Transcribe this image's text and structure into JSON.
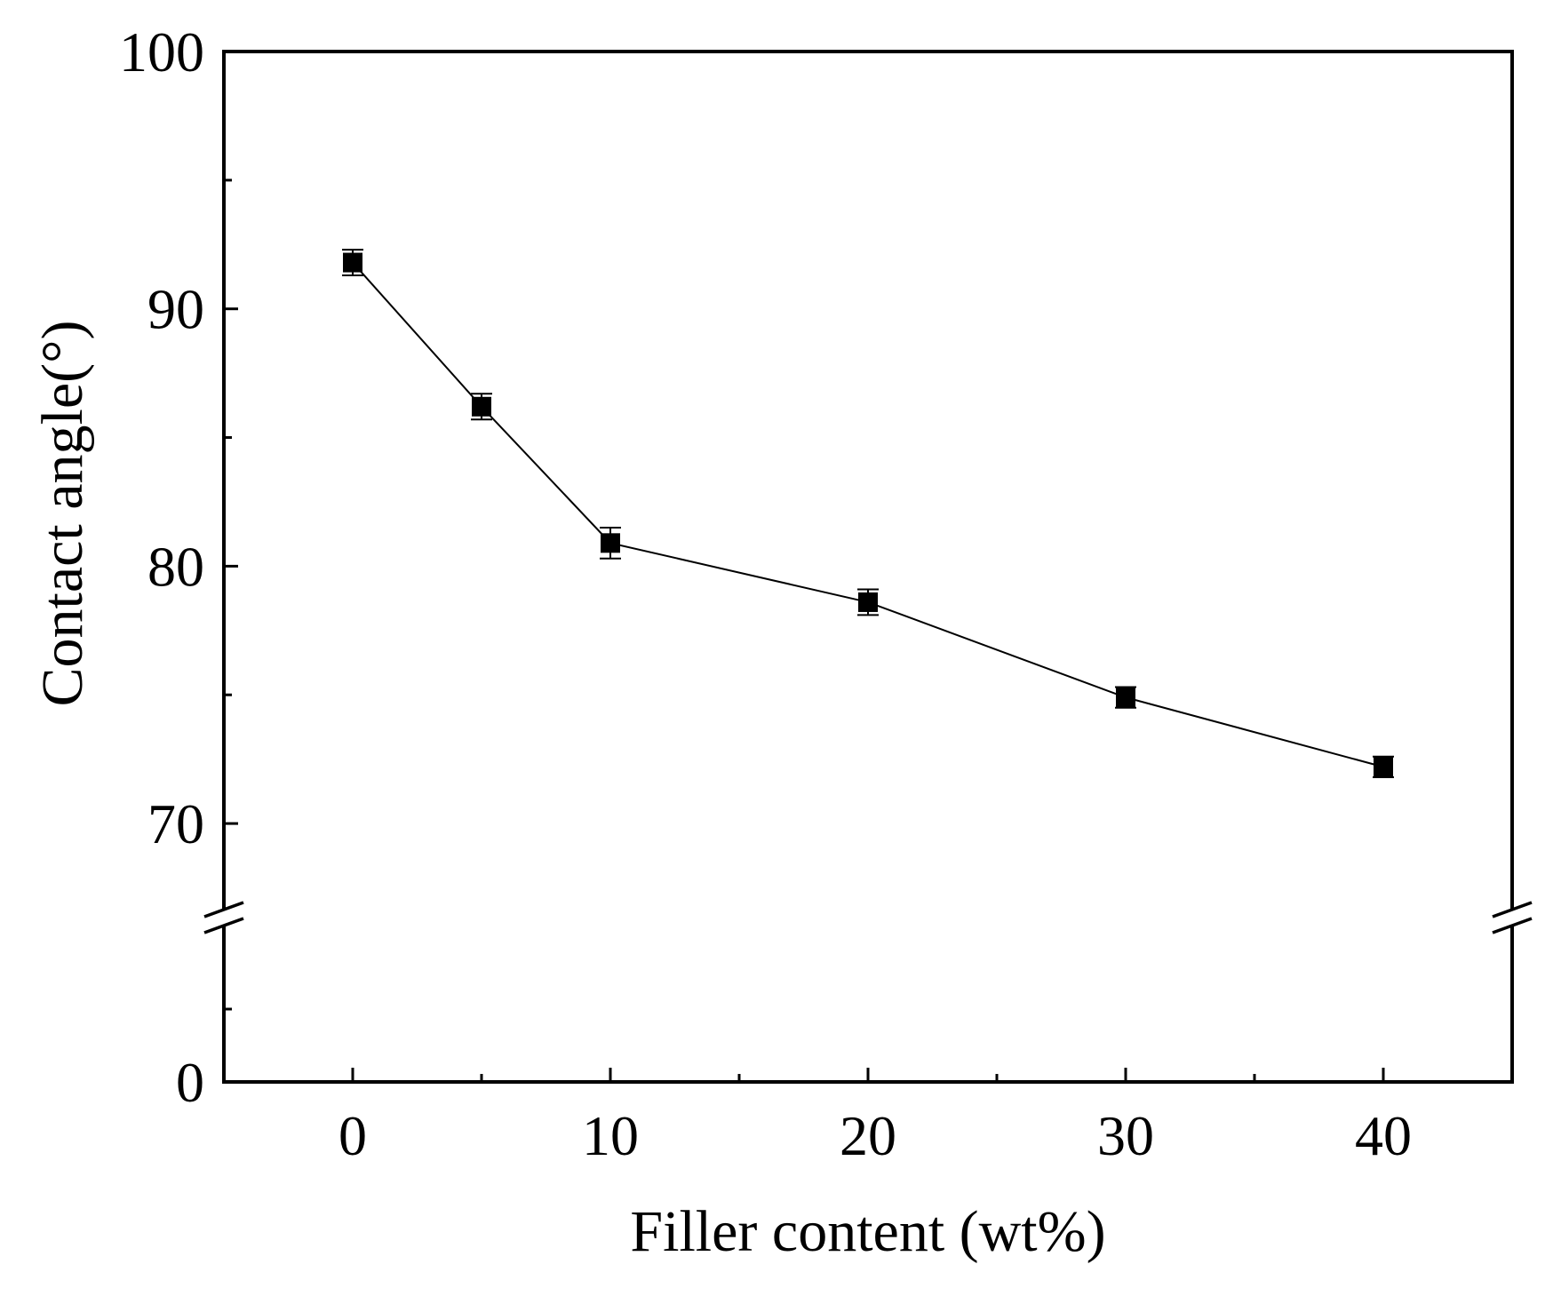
{
  "chart_data": {
    "type": "scatter",
    "xlabel": "Filler content (wt%)",
    "ylabel": "Contact angle(°)",
    "xlim": [
      -5,
      45
    ],
    "ylim_segments": [
      [
        0,
        40
      ],
      [
        67,
        100
      ]
    ],
    "axis_break": "y-axis break between 0 and 70",
    "x_ticks_major": [
      0,
      10,
      20,
      30,
      40
    ],
    "x_ticks_minor": [
      5,
      15,
      25,
      35
    ],
    "y_ticks_major": [
      0,
      70,
      80,
      90,
      100
    ],
    "y_ticks_minor": [
      20,
      75,
      85,
      95
    ],
    "x_tick_labels": [
      "0",
      "10",
      "20",
      "30",
      "40"
    ],
    "y_tick_labels": [
      "0",
      "70",
      "80",
      "90",
      "100"
    ],
    "marker": "square",
    "line_connected": true,
    "error_bars": true,
    "grid": false,
    "series": [
      {
        "x": [
          0,
          5,
          10,
          20,
          30,
          40
        ],
        "y": [
          91.8,
          86.2,
          80.9,
          78.6,
          74.9,
          72.2
        ],
        "error": [
          0.5,
          0.5,
          0.6,
          0.5,
          0.4,
          0.4
        ],
        "color": "#000000"
      }
    ]
  }
}
